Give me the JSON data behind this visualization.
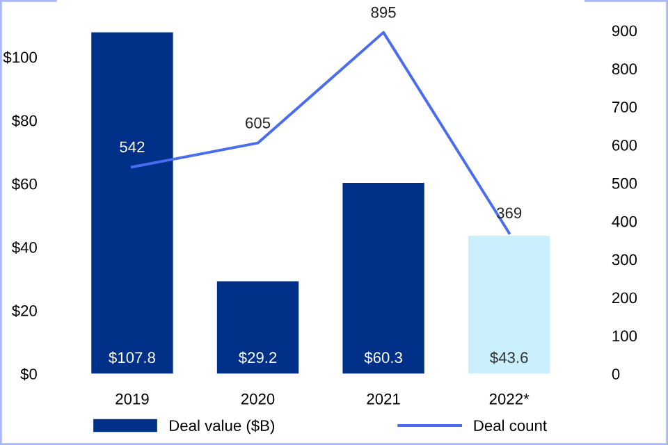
{
  "chart_data": {
    "type": "bar",
    "categories": [
      "2019",
      "2020",
      "2021",
      "2022*"
    ],
    "series": [
      {
        "name": "Deal value ($B)",
        "color": "#003087",
        "colors": [
          "#003087",
          "#003087",
          "#003087",
          "#c9f0fc"
        ],
        "values": [
          107.8,
          29.2,
          60.3,
          43.6
        ],
        "value_labels": [
          "$107.8",
          "$29.2",
          "$60.3",
          "$43.6"
        ]
      },
      {
        "name": "Deal count",
        "type": "line",
        "axis": "y2",
        "color": "#4a6cf0",
        "values": [
          542,
          605,
          895,
          369
        ],
        "value_labels": [
          "542",
          "605",
          "895",
          "369"
        ]
      }
    ],
    "ylim": [
      0,
      118
    ],
    "yticks": [
      {
        "value": 0,
        "label": "$0"
      },
      {
        "value": 20,
        "label": "$20"
      },
      {
        "value": 40,
        "label": "$40"
      },
      {
        "value": 60,
        "label": "$60"
      },
      {
        "value": 80,
        "label": "$80"
      },
      {
        "value": 100,
        "label": "$100"
      }
    ],
    "y2lim": [
      0,
      980
    ],
    "y2ticks": [
      0,
      100,
      200,
      300,
      400,
      500,
      600,
      700,
      800,
      900
    ],
    "grid": false,
    "legend": "bottom",
    "marker": "none",
    "line_style": "solid"
  }
}
